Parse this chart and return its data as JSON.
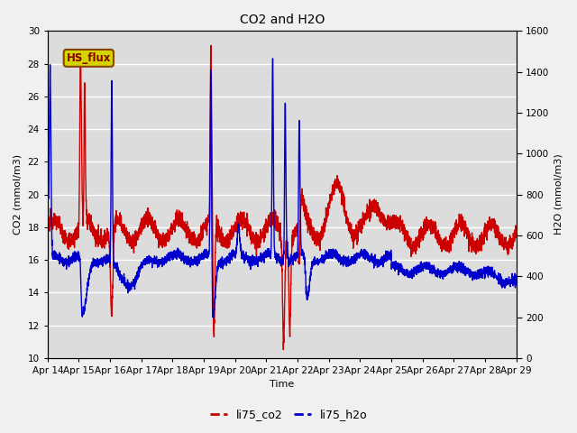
{
  "title": "CO2 and H2O",
  "xlabel": "Time",
  "ylabel_left": "CO2 (mmol/m3)",
  "ylabel_right": "H2O (mmol/m3)",
  "xlim": [
    0,
    15
  ],
  "ylim_left": [
    10,
    30
  ],
  "ylim_right": [
    0,
    1600
  ],
  "yticks_left": [
    10,
    12,
    14,
    16,
    18,
    20,
    22,
    24,
    26,
    28,
    30
  ],
  "yticks_right": [
    0,
    200,
    400,
    600,
    800,
    1000,
    1200,
    1400,
    1600
  ],
  "xtick_labels": [
    "Apr 14",
    "Apr 15",
    "Apr 16",
    "Apr 17",
    "Apr 18",
    "Apr 19",
    "Apr 20",
    "Apr 21",
    "Apr 22",
    "Apr 23",
    "Apr 24",
    "Apr 25",
    "Apr 26",
    "Apr 27",
    "Apr 28",
    "Apr 29"
  ],
  "color_co2": "#cc0000",
  "color_h2o": "#0000cc",
  "label_co2": "li75_co2",
  "label_h2o": "li75_h2o",
  "annotation_text": "HS_flux",
  "annotation_bg": "#d4d400",
  "annotation_border": "#884400",
  "annotation_text_color": "#880000",
  "plot_bg_color": "#dcdcdc",
  "fig_bg_color": "#f0f0f0",
  "grid_color": "#ffffff",
  "linewidth": 1.0,
  "title_fontsize": 10,
  "label_fontsize": 8,
  "tick_fontsize": 7.5,
  "legend_fontsize": 9
}
